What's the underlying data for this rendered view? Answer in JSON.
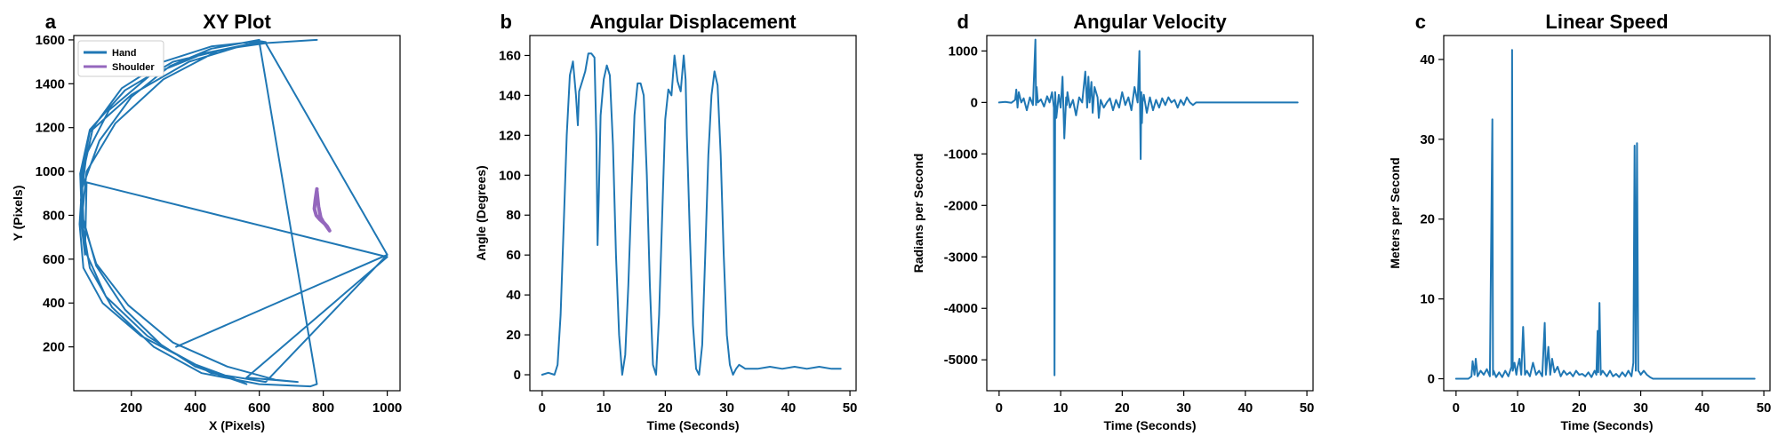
{
  "figure": {
    "colors": {
      "primary": "#1f77b4",
      "secondary": "#9467bd",
      "axis": "#000000"
    }
  },
  "chart_data": [
    {
      "id": "xy",
      "panel_letter": "a",
      "type": "line",
      "title": "XY Plot",
      "xlabel": "X (Pixels)",
      "ylabel": "Y (Pixels)",
      "xlim": [
        20,
        1040
      ],
      "ylim": [
        0,
        1620
      ],
      "xticks": [
        200,
        400,
        600,
        800,
        1000
      ],
      "yticks": [
        200,
        400,
        600,
        800,
        1000,
        1200,
        1400,
        1600
      ],
      "legend": {
        "position": "top-left",
        "entries": [
          "Hand",
          "Shoulder"
        ]
      },
      "series": [
        {
          "name": "Hand",
          "x": [
            600,
            450,
            320,
            200,
            100,
            45,
            38,
            50,
            110,
            230,
            400,
            520,
            560,
            540,
            400,
            250,
            120,
            55,
            42,
            60,
            130,
            260,
            430,
            600,
            780,
            760,
            600,
            420,
            270,
            140,
            70,
            45,
            60,
            150,
            300,
            470,
            620,
            600,
            450,
            300,
            170,
            80,
            50,
            40,
            55,
            60,
            1000,
            560,
            720,
            650,
            500,
            330,
            190,
            90,
            45,
            40,
            70,
            180,
            330,
            500,
            620,
            1000,
            340,
            1000,
            620,
            450,
            300,
            180,
            90,
            50,
            45,
            70,
            200,
            380,
            560,
            780
          ],
          "y": [
            1600,
            1560,
            1480,
            1340,
            1140,
            920,
            760,
            560,
            400,
            250,
            120,
            55,
            30,
            40,
            110,
            250,
            430,
            640,
            870,
            1080,
            1280,
            1440,
            1540,
            1590,
            30,
            20,
            30,
            80,
            200,
            380,
            560,
            780,
            1000,
            1220,
            1420,
            1550,
            1590,
            1595,
            1570,
            1500,
            1380,
            1200,
            1000,
            800,
            620,
            950,
            610,
            60,
            40,
            50,
            110,
            220,
            390,
            580,
            790,
            990,
            1190,
            1370,
            1500,
            1560,
            1585,
            620,
            200,
            620,
            40,
            80,
            200,
            370,
            570,
            780,
            990,
            1180,
            1350,
            1500,
            1580,
            1600
          ]
        },
        {
          "name": "Shoulder",
          "x": [
            780,
            775,
            772,
            778,
            790,
            805,
            815,
            820,
            812,
            800,
            792,
            785,
            780
          ],
          "y": [
            920,
            870,
            830,
            800,
            780,
            760,
            740,
            730,
            750,
            770,
            790,
            840,
            910
          ]
        }
      ]
    },
    {
      "id": "angle",
      "panel_letter": "b",
      "type": "line",
      "title": "Angular Displacement",
      "xlabel": "Time (Seconds)",
      "ylabel": "Angle (Degrees)",
      "xlim": [
        -2,
        51
      ],
      "ylim": [
        -8,
        170
      ],
      "xticks": [
        0,
        10,
        20,
        30,
        40,
        50
      ],
      "yticks": [
        0,
        20,
        40,
        60,
        80,
        100,
        120,
        140,
        160
      ],
      "series": [
        {
          "name": "",
          "x": [
            0,
            1,
            2,
            2.5,
            3,
            3.5,
            4,
            4.5,
            5,
            5.5,
            5.8,
            6,
            6.3,
            6.6,
            7,
            7.5,
            8,
            8.5,
            8.8,
            9,
            9.2,
            9.5,
            10,
            10.5,
            11,
            11.5,
            12,
            12.5,
            13,
            13.5,
            14,
            14.5,
            15,
            15.5,
            16,
            16.5,
            17,
            17.5,
            18,
            18.5,
            19,
            19.5,
            20,
            20.5,
            21,
            21.5,
            22,
            22.5,
            23,
            23.3,
            23.5,
            23.7,
            24,
            24.5,
            25,
            25.5,
            26,
            26.5,
            27,
            27.5,
            28,
            28.5,
            29,
            29.5,
            30,
            30.5,
            31,
            31.5,
            32,
            32.5,
            33,
            35,
            37,
            39,
            41,
            43,
            45,
            47,
            48.5
          ],
          "y": [
            0,
            1,
            0,
            5,
            30,
            75,
            120,
            150,
            157,
            140,
            125,
            142,
            145,
            148,
            152,
            161,
            161,
            159,
            120,
            65,
            90,
            130,
            148,
            155,
            150,
            115,
            60,
            20,
            0,
            10,
            45,
            90,
            130,
            146,
            146,
            140,
            100,
            45,
            5,
            0,
            30,
            80,
            128,
            143,
            140,
            160,
            147,
            142,
            160,
            148,
            120,
            100,
            70,
            25,
            3,
            0,
            15,
            60,
            110,
            140,
            152,
            145,
            110,
            60,
            20,
            5,
            0,
            3,
            5,
            4,
            3,
            3,
            4,
            3,
            4,
            3,
            4,
            3,
            3
          ]
        }
      ]
    },
    {
      "id": "velocity",
      "panel_letter": "d",
      "type": "line",
      "title": "Angular Velocity",
      "xlabel": "Time (Seconds)",
      "ylabel": "Radians per Second",
      "xlim": [
        -2,
        51
      ],
      "ylim": [
        -5600,
        1300
      ],
      "xticks": [
        0,
        10,
        20,
        30,
        40,
        50
      ],
      "yticks": [
        -5000,
        -4000,
        -3000,
        -2000,
        -1000,
        0,
        1000
      ],
      "series": [
        {
          "name": "",
          "x": [
            0,
            1,
            2,
            2.6,
            2.8,
            3,
            3.2,
            3.6,
            4,
            4.5,
            5,
            5.5,
            5.9,
            6,
            6.1,
            6.3,
            6.8,
            7.3,
            7.8,
            8.2,
            8.6,
            8.9,
            9,
            9.1,
            9.3,
            9.7,
            10,
            10.3,
            10.6,
            10.9,
            11,
            11.1,
            11.5,
            12,
            12.5,
            13,
            13.5,
            14,
            14.3,
            14.5,
            14.7,
            15,
            15.2,
            15.5,
            16,
            16.2,
            16.5,
            17,
            17.5,
            18,
            18.5,
            19,
            19.5,
            20,
            20.5,
            21,
            21.5,
            22,
            22.5,
            22.8,
            23,
            23.1,
            23.2,
            23.3,
            23.5,
            24,
            24.5,
            25,
            25.5,
            26,
            26.5,
            27,
            27.5,
            28,
            28.5,
            29,
            29.5,
            30,
            30.5,
            31,
            31.5,
            32,
            33,
            35,
            37,
            39,
            41,
            43,
            45,
            47,
            48.5
          ],
          "y": [
            0,
            10,
            -5,
            50,
            250,
            -100,
            200,
            0,
            80,
            -150,
            100,
            -50,
            1220,
            -50,
            300,
            0,
            60,
            -80,
            120,
            0,
            200,
            -100,
            -5300,
            200,
            -300,
            150,
            -100,
            500,
            -700,
            100,
            -50,
            200,
            -100,
            50,
            -250,
            100,
            0,
            600,
            -100,
            500,
            0,
            400,
            -200,
            300,
            100,
            -300,
            50,
            -100,
            0,
            80,
            -150,
            50,
            -100,
            200,
            -50,
            100,
            -150,
            300,
            0,
            1000,
            -1100,
            200,
            -400,
            0,
            150,
            -200,
            100,
            -150,
            50,
            -100,
            80,
            -50,
            100,
            0,
            50,
            -100,
            50,
            -50,
            100,
            0,
            -50,
            0,
            0,
            0,
            0,
            0,
            0,
            0,
            0,
            0,
            0
          ]
        }
      ]
    },
    {
      "id": "speed",
      "panel_letter": "c",
      "type": "line",
      "title": "Linear Speed",
      "xlabel": "Time (Seconds)",
      "ylabel": "Meters per Second",
      "xlim": [
        -2,
        51
      ],
      "ylim": [
        -1.5,
        43
      ],
      "xticks": [
        0,
        10,
        20,
        30,
        40,
        50
      ],
      "yticks": [
        0,
        10,
        20,
        30,
        40
      ],
      "series": [
        {
          "name": "",
          "x": [
            0,
            1,
            2,
            2.5,
            2.7,
            3,
            3.2,
            3.5,
            4,
            4.5,
            5,
            5.5,
            5.9,
            6,
            6.1,
            6.5,
            7,
            7.5,
            8,
            8.5,
            9,
            9.1,
            9.2,
            9.5,
            9.8,
            10,
            10.3,
            10.6,
            10.9,
            11.2,
            11.5,
            12,
            12.5,
            13,
            13.5,
            14,
            14.4,
            14.6,
            15,
            15.3,
            15.6,
            16,
            16.5,
            17,
            17.5,
            18,
            18.5,
            19,
            19.5,
            20,
            20.5,
            21,
            21.5,
            22,
            22.5,
            22.8,
            23,
            23.1,
            23.3,
            23.5,
            23.8,
            24.5,
            25,
            25.5,
            26,
            26.5,
            27,
            27.5,
            28,
            28.5,
            28.8,
            29,
            29.2,
            29.4,
            29.6,
            29.8,
            30,
            30.5,
            31,
            31.5,
            32,
            33,
            35,
            37,
            39,
            41,
            43,
            45,
            47,
            48.5
          ],
          "y": [
            0,
            0,
            0,
            0.3,
            2.2,
            0.5,
            2.5,
            0.3,
            1,
            0.5,
            1.2,
            0.3,
            32.5,
            0.5,
            1,
            0.2,
            0.8,
            0.2,
            1,
            0.3,
            1.5,
            41.2,
            1,
            2,
            0.5,
            1.5,
            2.5,
            0.5,
            6.5,
            0.5,
            1,
            0.3,
            2,
            0.5,
            1,
            0.3,
            7,
            0.5,
            4,
            0.5,
            2.5,
            0.8,
            1.5,
            0.3,
            1,
            0.5,
            0.8,
            0.3,
            1,
            0.5,
            0.6,
            0.3,
            0.8,
            0.2,
            1,
            0.5,
            6,
            0.8,
            9.5,
            0.5,
            1,
            0.3,
            1,
            0.3,
            0.6,
            0.2,
            0.8,
            0.3,
            1,
            0.3,
            2,
            29.2,
            1,
            29.5,
            1,
            0.8,
            0.5,
            1,
            0.5,
            0.2,
            0,
            0,
            0,
            0,
            0,
            0,
            0,
            0,
            0,
            0
          ]
        }
      ]
    }
  ]
}
